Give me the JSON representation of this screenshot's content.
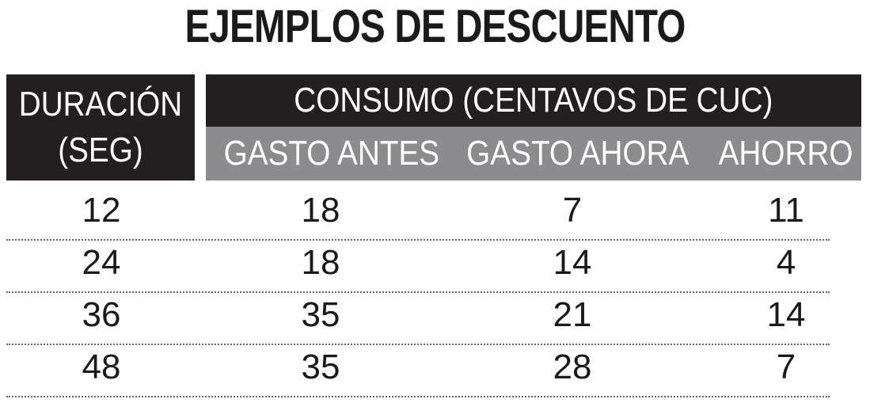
{
  "title": "EJEMPLOS DE DESCUENTO",
  "header": {
    "duracion_line1": "DURACIÓN",
    "duracion_line2": "(SEG)",
    "consumo": "CONSUMO (CENTAVOS DE CUC)",
    "gasto_antes": "GASTO ANTES",
    "gasto_ahora": "GASTO AHORA",
    "ahorro": "AHORRO"
  },
  "rows": [
    {
      "duracion": "12",
      "gasto_antes": "18",
      "gasto_ahora": "7",
      "ahorro": "11"
    },
    {
      "duracion": "24",
      "gasto_antes": "18",
      "gasto_ahora": "14",
      "ahorro": "4"
    },
    {
      "duracion": "36",
      "gasto_antes": "35",
      "gasto_ahora": "21",
      "ahorro": "14"
    },
    {
      "duracion": "48",
      "gasto_antes": "35",
      "gasto_ahora": "28",
      "ahorro": "7"
    }
  ],
  "colors": {
    "header_dark": "#231f20",
    "header_gray": "#8c8c8e",
    "text": "#1a1a1a"
  }
}
